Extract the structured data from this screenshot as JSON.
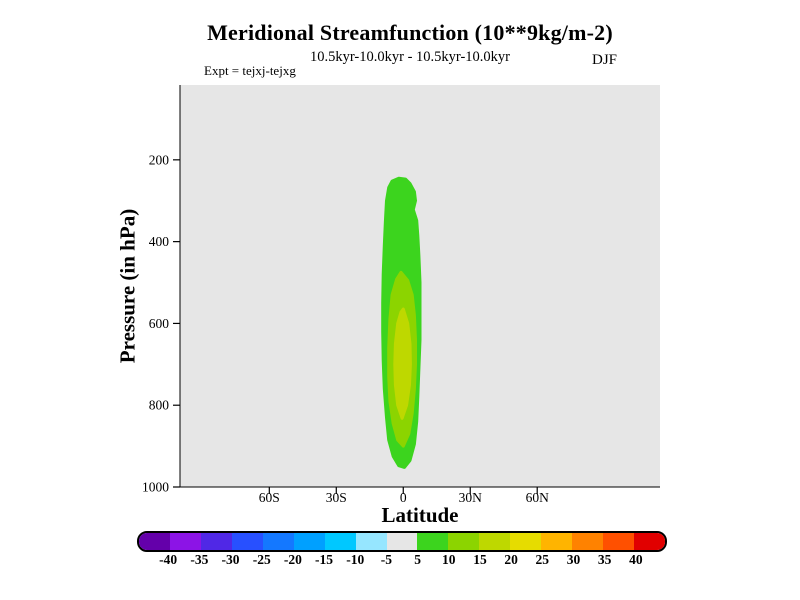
{
  "chart_data": {
    "type": "filled-contour",
    "title": "Meridional Streamfunction (10**9kg/m-2)",
    "subtitle": "10.5kyr-10.0kyr - 10.5kyr-10.0kyr",
    "experiment": "Expt = tejxj-tejxg",
    "season": "DJF",
    "xlabel": "Latitude",
    "ylabel": "Pressure (in hPa)",
    "plot_bg": "#e6e6e6",
    "xlim": [
      -100,
      115
    ],
    "plim": [
      17,
      1000
    ],
    "x_ticks": [
      {
        "value": -60,
        "label": "60S"
      },
      {
        "value": -30,
        "label": "30S"
      },
      {
        "value": 0,
        "label": "0"
      },
      {
        "value": 30,
        "label": "30N"
      },
      {
        "value": 60,
        "label": "60N"
      }
    ],
    "y_ticks": [
      200,
      400,
      600,
      800,
      1000
    ],
    "contours": [
      {
        "level": 5,
        "color": "#3cd41e",
        "points": [
          [
            -5,
            252
          ],
          [
            -2,
            245
          ],
          [
            1,
            247
          ],
          [
            3,
            258
          ],
          [
            5,
            278
          ],
          [
            5.5,
            300
          ],
          [
            4.5,
            322
          ],
          [
            6,
            348
          ],
          [
            6.5,
            385
          ],
          [
            7,
            435
          ],
          [
            7.5,
            500
          ],
          [
            7.5,
            570
          ],
          [
            7.5,
            640
          ],
          [
            7,
            710
          ],
          [
            6.5,
            780
          ],
          [
            6,
            840
          ],
          [
            5,
            895
          ],
          [
            3,
            935
          ],
          [
            0.5,
            952
          ],
          [
            -2,
            948
          ],
          [
            -4.5,
            925
          ],
          [
            -6.5,
            885
          ],
          [
            -7.5,
            830
          ],
          [
            -8.5,
            760
          ],
          [
            -9,
            690
          ],
          [
            -9.2,
            620
          ],
          [
            -9.2,
            550
          ],
          [
            -9,
            480
          ],
          [
            -8.5,
            410
          ],
          [
            -8,
            350
          ],
          [
            -7.5,
            300
          ],
          [
            -6.5,
            268
          ]
        ]
      },
      {
        "level": 10,
        "color": "#8cd400",
        "points": [
          [
            -1,
            475
          ],
          [
            2,
            495
          ],
          [
            4,
            530
          ],
          [
            5,
            580
          ],
          [
            5.5,
            640
          ],
          [
            5.5,
            700
          ],
          [
            5,
            760
          ],
          [
            4,
            820
          ],
          [
            2.5,
            870
          ],
          [
            0,
            900
          ],
          [
            -2.5,
            885
          ],
          [
            -4.5,
            845
          ],
          [
            -6,
            790
          ],
          [
            -6.5,
            730
          ],
          [
            -6.5,
            660
          ],
          [
            -6,
            590
          ],
          [
            -5,
            530
          ],
          [
            -3,
            492
          ]
        ]
      },
      {
        "level": 15,
        "color": "#bed800",
        "points": [
          [
            0,
            565
          ],
          [
            2,
            600
          ],
          [
            3,
            650
          ],
          [
            3.2,
            700
          ],
          [
            2.8,
            750
          ],
          [
            1.5,
            800
          ],
          [
            -0.5,
            832
          ],
          [
            -2.5,
            800
          ],
          [
            -3.5,
            750
          ],
          [
            -3.8,
            700
          ],
          [
            -3.5,
            650
          ],
          [
            -2.5,
            600
          ],
          [
            -1,
            572
          ]
        ]
      }
    ],
    "colorbar": {
      "labels": [
        "-40",
        "-35",
        "-30",
        "-25",
        "-20",
        "-15",
        "-10",
        "-5",
        "5",
        "10",
        "15",
        "20",
        "25",
        "30",
        "35",
        "40"
      ],
      "colors": [
        "#6400aa",
        "#8c14e6",
        "#5028e6",
        "#2850ff",
        "#1478ff",
        "#00a0ff",
        "#00c8ff",
        "#96e6ff",
        "#e6e6e6",
        "#3cd41e",
        "#8cd400",
        "#bed800",
        "#e6dc00",
        "#ffb400",
        "#ff8200",
        "#ff5000",
        "#e10000"
      ]
    }
  }
}
